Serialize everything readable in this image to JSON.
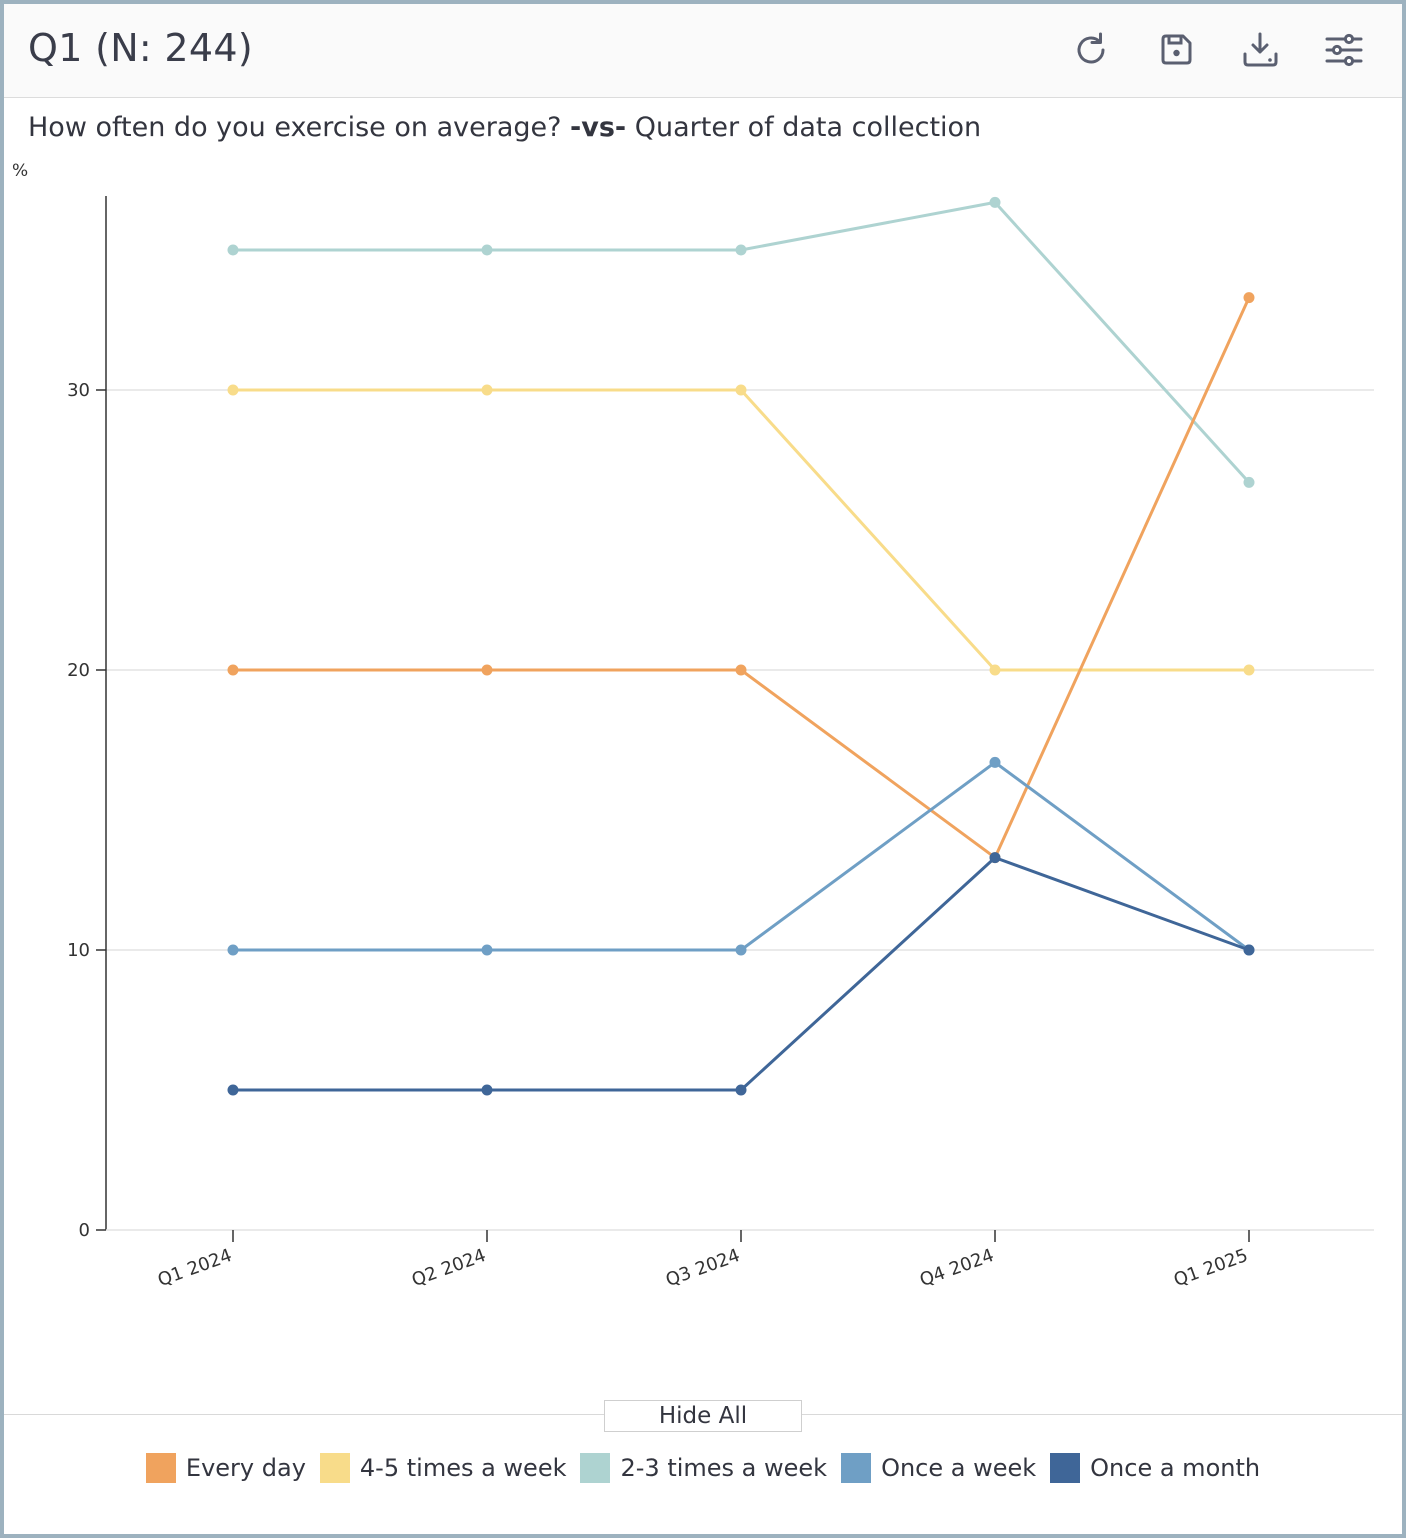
{
  "header": {
    "title": "Q1 (N: 244)",
    "icons": [
      "refresh-icon",
      "save-icon",
      "download-icon",
      "settings-sliders-icon"
    ]
  },
  "subtitle": {
    "question": "How often do you exercise on average?",
    "vs": "-vs-",
    "variable": "Quarter of data collection"
  },
  "controls": {
    "hide_all_label": "Hide All"
  },
  "chart_data": {
    "type": "line",
    "title": "Q1 (N: 244)",
    "ylabel": "%",
    "xlabel": "",
    "ylim": [
      0,
      37
    ],
    "yticks": [
      0,
      10,
      20,
      30
    ],
    "grid": true,
    "legend_position": "bottom",
    "categories": [
      "Q1 2024",
      "Q2 2024",
      "Q3 2024",
      "Q4 2024",
      "Q1 2025"
    ],
    "series": [
      {
        "name": "2-3 times a week",
        "color": "#aed3d1",
        "values": [
          35,
          35,
          35,
          36.7,
          26.7
        ]
      },
      {
        "name": "4-5 times a week",
        "color": "#f8dc8a",
        "values": [
          30,
          30,
          30,
          20,
          20
        ]
      },
      {
        "name": "Every day",
        "color": "#f0a35e",
        "values": [
          20,
          20,
          20,
          13.3,
          33.3
        ]
      },
      {
        "name": "Once a week",
        "color": "#6f9fc5",
        "values": [
          10,
          10,
          10,
          16.7,
          10
        ]
      },
      {
        "name": "Once a month",
        "color": "#3f6698",
        "values": [
          5,
          5,
          5,
          13.3,
          10
        ]
      }
    ],
    "legend": [
      {
        "name": "Every day",
        "color": "#f0a35e"
      },
      {
        "name": "4-5 times a week",
        "color": "#f8dc8a"
      },
      {
        "name": "2-3 times a week",
        "color": "#aed3d1"
      },
      {
        "name": "Once a week",
        "color": "#6f9fc5"
      },
      {
        "name": "Once a month",
        "color": "#3f6698"
      }
    ]
  }
}
